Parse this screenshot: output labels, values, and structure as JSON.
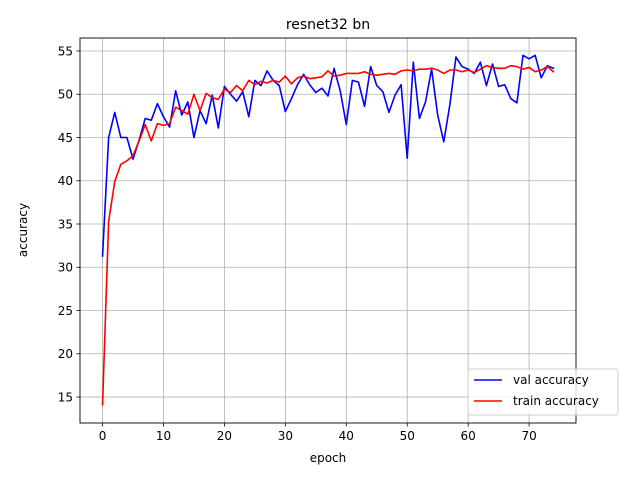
{
  "chart_data": {
    "type": "line",
    "title": "resnet32 bn",
    "xlabel": "epoch",
    "ylabel": "accuracy",
    "xlim": [
      -3.7,
      77.7
    ],
    "ylim": [
      12.0,
      56.5
    ],
    "xticks": [
      0,
      10,
      20,
      30,
      40,
      50,
      60,
      70
    ],
    "yticks": [
      15,
      20,
      25,
      30,
      35,
      40,
      45,
      50,
      55
    ],
    "grid": true,
    "legend_position": "lower-right",
    "series": [
      {
        "name": "val accuracy",
        "color": "#0000ff",
        "values": [
          31.3,
          45.0,
          47.9,
          45.0,
          45.0,
          42.5,
          44.7,
          47.2,
          47.0,
          48.9,
          47.4,
          46.2,
          50.4,
          47.6,
          49.1,
          45.0,
          48.1,
          46.6,
          49.9,
          46.1,
          50.9,
          50.0,
          49.2,
          50.3,
          47.4,
          51.6,
          51.0,
          52.7,
          51.6,
          51.0,
          48.0,
          49.5,
          51.1,
          52.3,
          51.1,
          50.2,
          50.7,
          49.8,
          53.0,
          50.4,
          46.5,
          51.6,
          51.4,
          48.6,
          53.2,
          51.0,
          50.3,
          47.9,
          49.9,
          51.1,
          42.6,
          53.7,
          47.2,
          49.1,
          52.9,
          47.6,
          44.5,
          48.8,
          54.3,
          53.2,
          52.9,
          52.4,
          53.7,
          51.0,
          53.5,
          50.9,
          51.1,
          49.5,
          49.0,
          54.5,
          54.1,
          54.5,
          51.9,
          53.3,
          53.0
        ]
      },
      {
        "name": "train accuracy",
        "color": "#ff0000",
        "values": [
          14.1,
          35.3,
          39.9,
          41.9,
          42.3,
          42.9,
          44.6,
          46.5,
          44.6,
          46.6,
          46.4,
          46.6,
          48.5,
          48.1,
          47.7,
          50.0,
          48.1,
          50.1,
          49.6,
          49.4,
          50.6,
          50.2,
          51.0,
          50.4,
          51.6,
          51.1,
          51.5,
          51.3,
          51.6,
          51.4,
          52.1,
          51.2,
          51.9,
          52.1,
          51.8,
          51.9,
          52.0,
          52.7,
          52.1,
          52.2,
          52.4,
          52.4,
          52.4,
          52.6,
          52.3,
          52.2,
          52.3,
          52.4,
          52.3,
          52.7,
          52.8,
          52.7,
          52.9,
          52.9,
          53.0,
          52.8,
          52.4,
          52.8,
          52.8,
          52.6,
          52.8,
          52.5,
          52.9,
          53.3,
          53.1,
          53.0,
          53.0,
          53.3,
          53.2,
          52.9,
          53.1,
          52.6,
          52.8,
          53.2,
          52.6
        ]
      }
    ]
  }
}
